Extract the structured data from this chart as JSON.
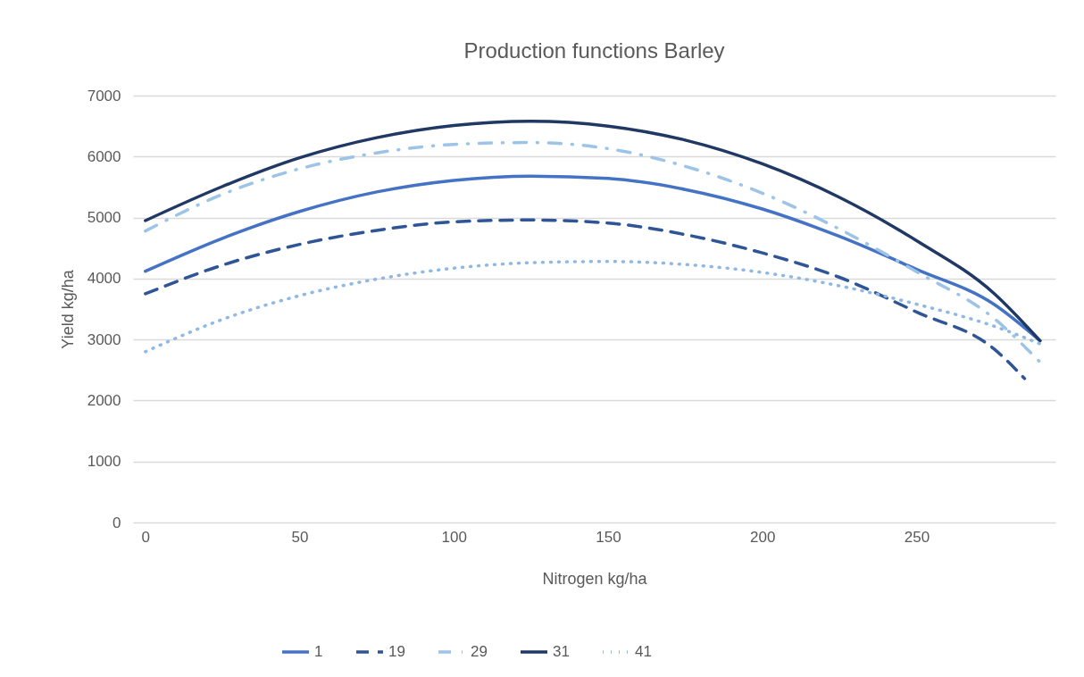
{
  "chart_data": {
    "type": "line",
    "title": "Production functions Barley",
    "xlabel": "Nitrogen kg/ha",
    "ylabel": "Yield kg/ha",
    "x": [
      0,
      25,
      50,
      75,
      100,
      125,
      150,
      175,
      200,
      225,
      250,
      275,
      290
    ],
    "xlim": [
      -4,
      295
    ],
    "xticks": [
      0,
      50,
      100,
      150,
      200,
      250
    ],
    "ylim": [
      0,
      7000
    ],
    "yticks": [
      0,
      1000,
      2000,
      3000,
      4000,
      5000,
      6000,
      7000
    ],
    "grid": "y",
    "legend": "bottom",
    "marker": "none",
    "series": [
      {
        "name": "1",
        "color": "#4472c4",
        "line_style": "solid",
        "values": [
          4120,
          4660,
          5100,
          5420,
          5610,
          5680,
          5640,
          5460,
          5140,
          4690,
          4150,
          3580,
          2980
        ]
      },
      {
        "name": "19",
        "color": "#2f5597",
        "line_style": "dashed",
        "x": [
          0,
          25,
          50,
          75,
          100,
          125,
          150,
          175,
          200,
          225,
          250,
          275,
          285
        ],
        "values": [
          3750,
          4220,
          4560,
          4790,
          4930,
          4960,
          4910,
          4720,
          4420,
          4020,
          3450,
          2850,
          2360
        ]
      },
      {
        "name": "29",
        "color": "#9dc3e6",
        "line_style": "dashdot",
        "values": [
          4780,
          5380,
          5800,
          6060,
          6200,
          6230,
          6130,
          5840,
          5400,
          4810,
          4110,
          3350,
          2630
        ]
      },
      {
        "name": "31",
        "color": "#203864",
        "line_style": "solid",
        "values": [
          4950,
          5510,
          5980,
          6310,
          6510,
          6580,
          6500,
          6270,
          5880,
          5330,
          4620,
          3760,
          2980
        ]
      },
      {
        "name": "41",
        "color": "#8fb8e3",
        "line_style": "dotted",
        "values": [
          2800,
          3330,
          3720,
          3990,
          4170,
          4260,
          4280,
          4230,
          4100,
          3880,
          3580,
          3220,
          2930
        ]
      }
    ]
  }
}
